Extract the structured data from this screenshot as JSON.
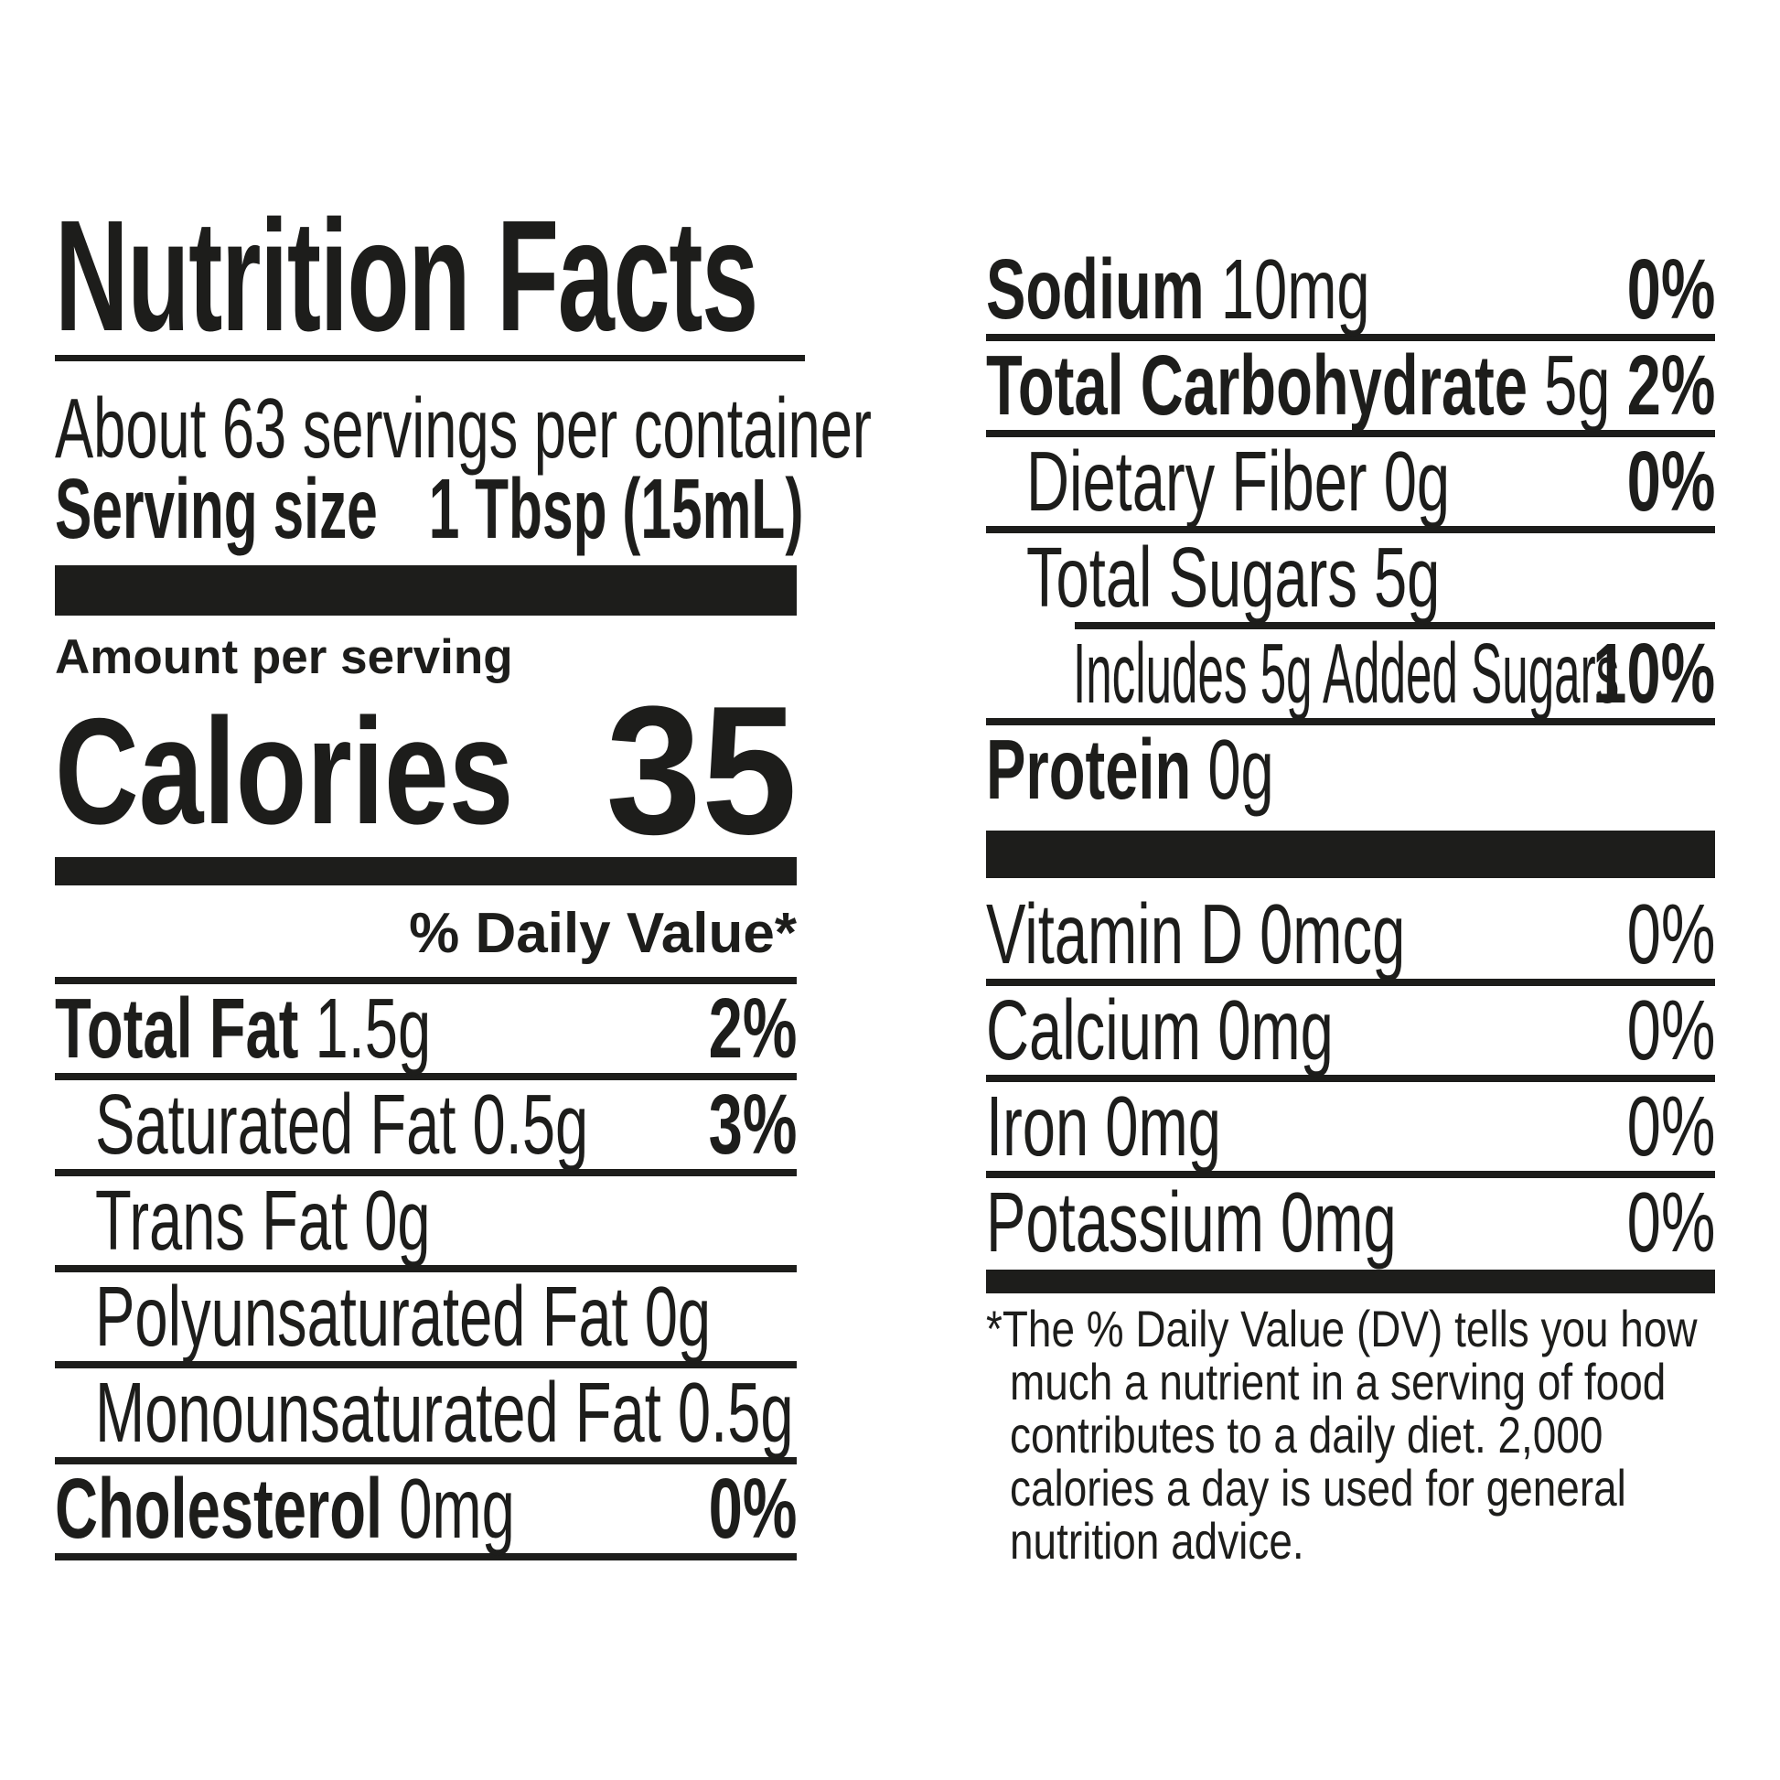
{
  "title": "Nutrition Facts",
  "serving_info": {
    "servings_per_container": "About 63 servings per container",
    "serving_size_label": "Serving size",
    "serving_size_value": "1 Tbsp (15mL)"
  },
  "calories": {
    "section_label": "Amount per serving",
    "label": "Calories",
    "value": "35"
  },
  "daily_value_header": "% Daily Value*",
  "nutrients_left": [
    {
      "label": "Total Fat",
      "value": "1.5g",
      "pct": "2%",
      "label_bold": true,
      "pct_bold": true,
      "indent": 0,
      "rule": "full"
    },
    {
      "label": "Saturated Fat",
      "value": "0.5g",
      "pct": "3%",
      "label_bold": false,
      "pct_bold": true,
      "indent": 1,
      "rule": "full"
    },
    {
      "label": "Trans Fat",
      "value": "0g",
      "pct": "",
      "label_bold": false,
      "pct_bold": false,
      "indent": 1,
      "rule": "full"
    },
    {
      "label": "Polyunsaturated Fat",
      "value": "0g",
      "pct": "",
      "label_bold": false,
      "pct_bold": false,
      "indent": 1,
      "rule": "full"
    },
    {
      "label": "Monounsaturated Fat",
      "value": "0.5g",
      "pct": "",
      "label_bold": false,
      "pct_bold": false,
      "indent": 1,
      "rule": "full"
    },
    {
      "label": "Cholesterol",
      "value": "0mg",
      "pct": "0%",
      "label_bold": true,
      "pct_bold": true,
      "indent": 0,
      "rule": "full"
    }
  ],
  "nutrients_right": [
    {
      "label": "Sodium",
      "value": "10mg",
      "pct": "0%",
      "label_bold": true,
      "pct_bold": true,
      "indent": 0,
      "rule": "full"
    },
    {
      "label": "Total Carbohydrate",
      "value": "5g",
      "pct": "2%",
      "label_bold": true,
      "pct_bold": true,
      "indent": 0,
      "rule": "full"
    },
    {
      "label": "Dietary Fiber",
      "value": "0g",
      "pct": "0%",
      "label_bold": false,
      "pct_bold": true,
      "indent": 1,
      "rule": "full"
    },
    {
      "label": "Total Sugars",
      "value": "5g",
      "pct": "",
      "label_bold": false,
      "pct_bold": false,
      "indent": 1,
      "rule": "short"
    },
    {
      "label": "Includes 5g Added Sugars",
      "value": "",
      "pct": "10%",
      "label_bold": false,
      "pct_bold": true,
      "indent": 2,
      "rule": "full"
    },
    {
      "label": "Protein",
      "value": "0g",
      "pct": "",
      "label_bold": true,
      "pct_bold": false,
      "indent": 0,
      "rule": "none"
    }
  ],
  "vitamins": [
    {
      "label": "Vitamin D",
      "value": "0mcg",
      "pct": "0%"
    },
    {
      "label": "Calcium",
      "value": "0mg",
      "pct": "0%"
    },
    {
      "label": "Iron",
      "value": "0mg",
      "pct": "0%"
    },
    {
      "label": "Potassium",
      "value": "0mg",
      "pct": "0%"
    }
  ],
  "footnote": {
    "lines": [
      "*The % Daily Value (DV) tells you how",
      "much a nutrient in a serving of food",
      "contributes to a daily diet. 2,000",
      "calories a day is used for general",
      "nutrition advice."
    ]
  }
}
